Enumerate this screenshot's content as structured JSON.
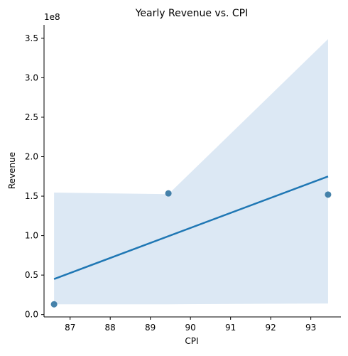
{
  "chart_data": {
    "type": "scatter",
    "title": "Yearly Revenue vs. CPI",
    "xlabel": "CPI",
    "ylabel": "Revenue",
    "y_offset_label": "1e8",
    "xlim": [
      86.35,
      93.75
    ],
    "ylim": [
      -0.03,
      3.67
    ],
    "y_scale": "1e8",
    "x_ticks": [
      87,
      88,
      89,
      90,
      91,
      92,
      93
    ],
    "y_ticks": [
      0.0,
      0.5,
      1.0,
      1.5,
      2.0,
      2.5,
      3.0,
      3.5
    ],
    "y_tick_labels": [
      "0.0",
      "0.5",
      "1.0",
      "1.5",
      "2.0",
      "2.5",
      "3.0",
      "3.5"
    ],
    "points": [
      {
        "x": 86.6,
        "y": 0.13
      },
      {
        "x": 89.45,
        "y": 1.535
      },
      {
        "x": 93.43,
        "y": 1.52
      }
    ],
    "regression_line": {
      "x": [
        86.6,
        93.43
      ],
      "y": [
        0.45,
        1.75
      ]
    },
    "confidence_band": {
      "x": [
        86.6,
        89.45,
        93.43
      ],
      "upper": [
        1.545,
        1.525,
        3.49
      ],
      "lower": [
        0.13,
        0.13,
        0.14
      ]
    },
    "colors": {
      "points": "#3274a1",
      "line": "#1f77b4",
      "band": "#dce8f4",
      "axes": "#000000"
    },
    "grid": false,
    "legend": "none"
  }
}
